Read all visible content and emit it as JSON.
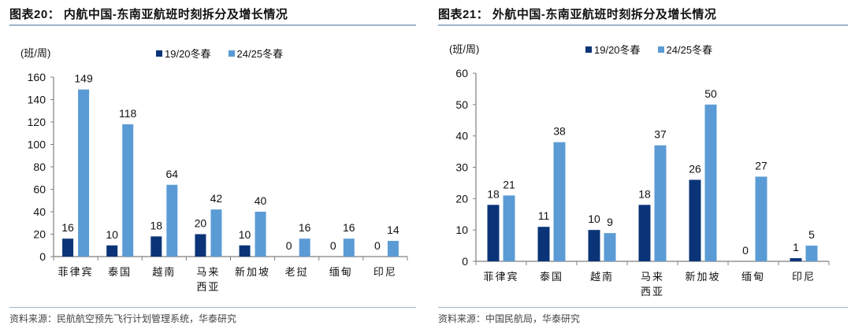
{
  "colors": {
    "series1": "#0b3478",
    "series2": "#5b9bd5",
    "axis": "#7f7f7f",
    "rule": "#9fb3cc"
  },
  "left": {
    "title": "图表20：  内航中国-东南亚航班时刻拆分及增长情况",
    "unit": "(班/周)",
    "legend": [
      "19/20冬春",
      "24/25冬春"
    ],
    "source": "资料来源：民航航空预先飞行计划管理系统，华泰研究"
  },
  "right": {
    "title": "图表21：  外航中国-东南亚航班时刻拆分及增长情况",
    "unit": "(班/周)",
    "legend": [
      "19/20冬春",
      "24/25冬春"
    ],
    "source": "资料来源：中国民航局，华泰研究"
  },
  "chart_data": [
    {
      "type": "bar",
      "title": "内航中国-东南亚航班时刻拆分及增长情况",
      "ylabel": "(班/周)",
      "xlabel": "",
      "categories": [
        "菲律宾",
        "泰国",
        "越南",
        "马来\n西亚",
        "新加坡",
        "老挝",
        "缅甸",
        "印尼"
      ],
      "series": [
        {
          "name": "19/20冬春",
          "values": [
            16,
            10,
            18,
            20,
            10,
            0,
            0,
            0
          ]
        },
        {
          "name": "24/25冬春",
          "values": [
            149,
            118,
            64,
            42,
            40,
            16,
            16,
            14
          ]
        }
      ],
      "ylim": [
        0,
        160
      ],
      "yticks": [
        0,
        20,
        40,
        60,
        80,
        100,
        120,
        140,
        160
      ],
      "grid": false,
      "legend_position": "top"
    },
    {
      "type": "bar",
      "title": "外航中国-东南亚航班时刻拆分及增长情况",
      "ylabel": "(班/周)",
      "xlabel": "",
      "categories": [
        "菲律宾",
        "泰国",
        "越南",
        "马来\n西亚",
        "新加坡",
        "缅甸",
        "印尼"
      ],
      "series": [
        {
          "name": "19/20冬春",
          "values": [
            18,
            11,
            10,
            18,
            26,
            0,
            1
          ]
        },
        {
          "name": "24/25冬春",
          "values": [
            21,
            38,
            9,
            37,
            50,
            27,
            5
          ]
        }
      ],
      "ylim": [
        0,
        60
      ],
      "yticks": [
        0,
        10,
        20,
        30,
        40,
        50,
        60
      ],
      "grid": false,
      "legend_position": "top"
    }
  ]
}
